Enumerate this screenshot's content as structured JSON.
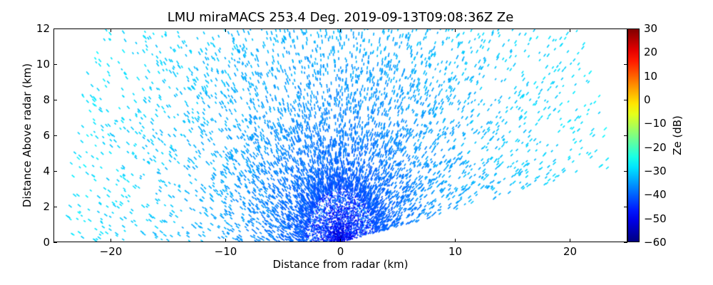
{
  "chart_data": {
    "type": "heatmap",
    "title": "LMU miraMACS 253.4 Deg. 2019-09-13T09:08:36Z  Ze",
    "xlabel": "Distance from radar (km)",
    "ylabel": "Distance Above radar  (km)",
    "xlim": [
      -25,
      25
    ],
    "ylim": [
      0,
      12
    ],
    "xticks": [
      -20,
      -10,
      0,
      10,
      20
    ],
    "xtick_labels": [
      "−20",
      "−10",
      "0",
      "10",
      "20"
    ],
    "yticks": [
      0,
      2,
      4,
      6,
      8,
      10,
      12
    ],
    "ytick_labels": [
      "0",
      "2",
      "4",
      "6",
      "8",
      "10",
      "12"
    ],
    "scan": {
      "type": "RHI",
      "azimuth_deg": 253.4,
      "elevation_range_deg": [
        10,
        180
      ],
      "max_range_km": 24
    },
    "field_description": "noise-level speckle, Ze increasing with range: about -50 dB near radar to -30 dB at 20 km",
    "colorbar": {
      "label": "Ze (dB)",
      "colormap": "jet",
      "range": [
        -60,
        30
      ],
      "ticks": [
        30,
        20,
        10,
        0,
        -10,
        -20,
        -30,
        -40,
        -50,
        -60
      ],
      "tick_labels": [
        "30",
        "20",
        "10",
        "0",
        "−10",
        "−20",
        "−30",
        "−40",
        "−50",
        "−60"
      ]
    }
  }
}
